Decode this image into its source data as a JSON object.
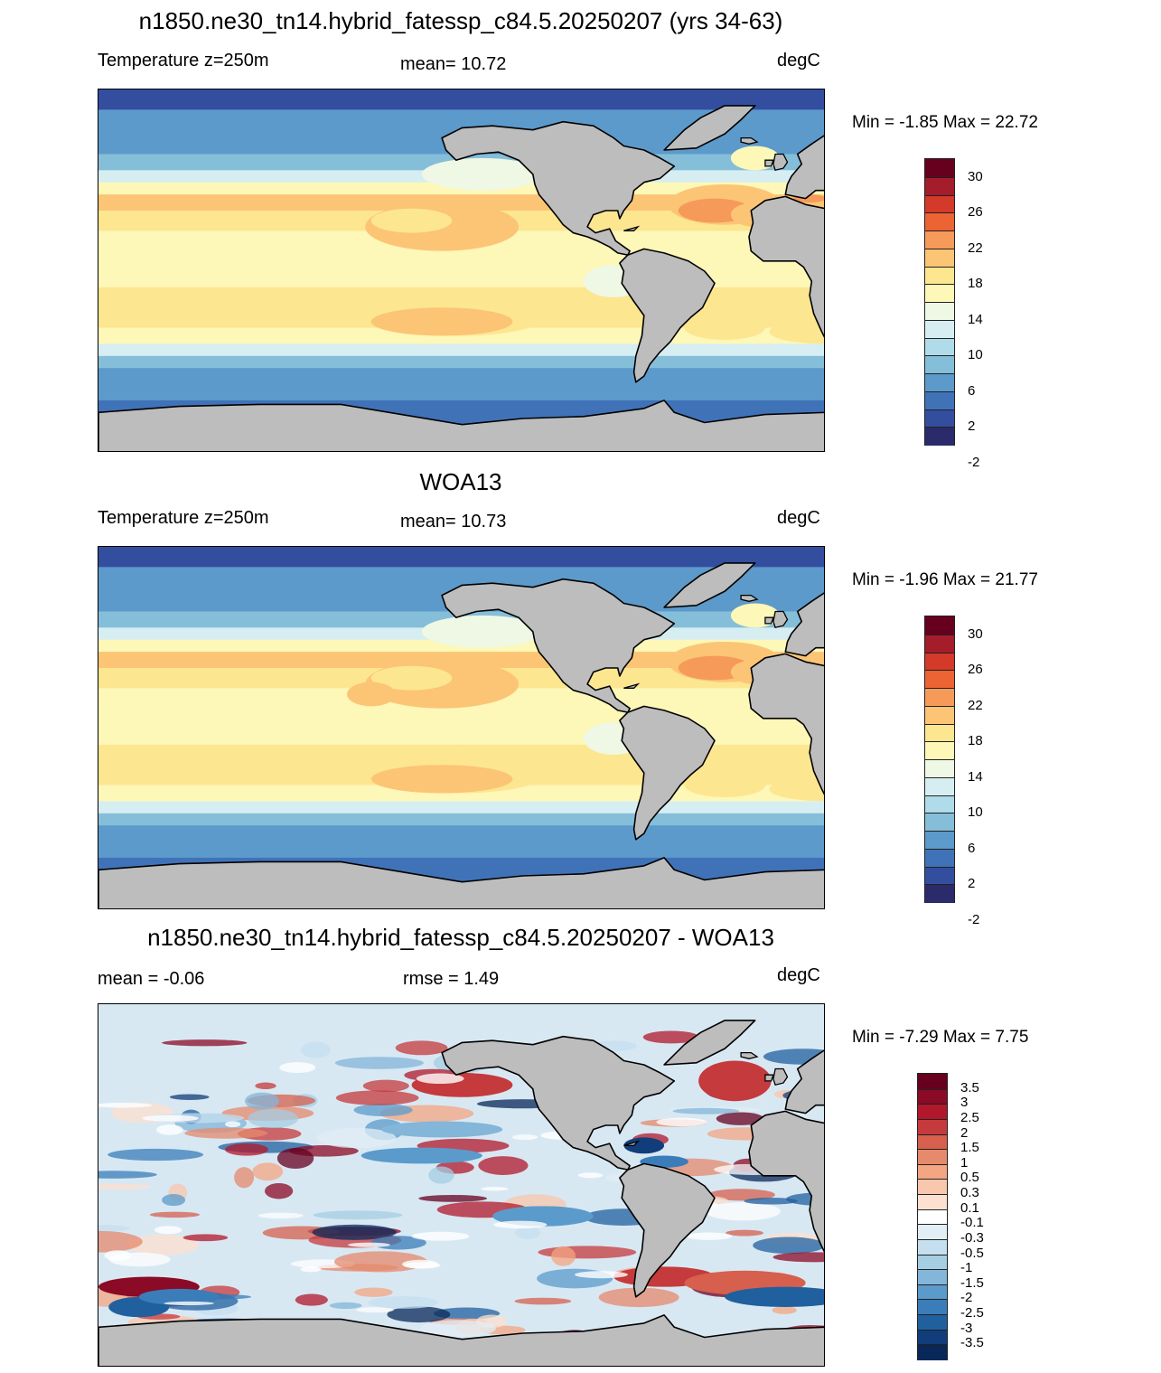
{
  "panels": [
    {
      "title": "n1850.ne30_tn14.hybrid_fatessp_c84.5.20250207 (yrs 34-63)",
      "left_label": "Temperature z=250m",
      "center_label": "mean=  10.72",
      "units": "degC",
      "minmax": "Min =  -1.85 Max =  22.72",
      "kind": "temp"
    },
    {
      "title": "WOA13",
      "left_label": "Temperature z=250m",
      "center_label": "mean=  10.73",
      "units": "degC",
      "minmax": "Min =  -1.96 Max =  21.77",
      "kind": "temp"
    },
    {
      "title": "n1850.ne30_tn14.hybrid_fatessp_c84.5.20250207 - WOA13",
      "left_label": "mean =  -0.06",
      "center_label": "rmse =   1.49",
      "units": "degC",
      "minmax": "Min =  -7.29 Max =   7.75",
      "kind": "diff"
    }
  ],
  "temp_colorbar": {
    "labels": [
      "30",
      "26",
      "22",
      "18",
      "14",
      "10",
      "6",
      "2",
      "-2"
    ],
    "colors": [
      "#67001f",
      "#a51c2a",
      "#d33a2a",
      "#ec6434",
      "#f69a5a",
      "#fbc575",
      "#fde690",
      "#fdf7b8",
      "#eef8e4",
      "#d6eef2",
      "#b0dbe8",
      "#85bed9",
      "#5c9acb",
      "#4072b8",
      "#344e9f",
      "#2b2a6a"
    ]
  },
  "diff_colorbar": {
    "labels": [
      "3.5",
      "3",
      "2.5",
      "2",
      "1.5",
      "1",
      "0.5",
      "0.3",
      "0.1",
      "-0.1",
      "-0.3",
      "-0.5",
      "-1",
      "-1.5",
      "-2",
      "-2.5",
      "-3",
      "-3.5"
    ],
    "colors": [
      "#67001f",
      "#8b0a25",
      "#b2182b",
      "#c53a3c",
      "#d6604d",
      "#e58a6c",
      "#f4a582",
      "#f9c7ad",
      "#fde0cf",
      "#ffffff",
      "#e2eef6",
      "#c5dff0",
      "#a6cee3",
      "#83b6d8",
      "#5b9bcb",
      "#3a7db9",
      "#21609f",
      "#113d7a",
      "#08285a"
    ]
  },
  "colors": {
    "land": "#bdbdbd",
    "coast": "#000000"
  }
}
